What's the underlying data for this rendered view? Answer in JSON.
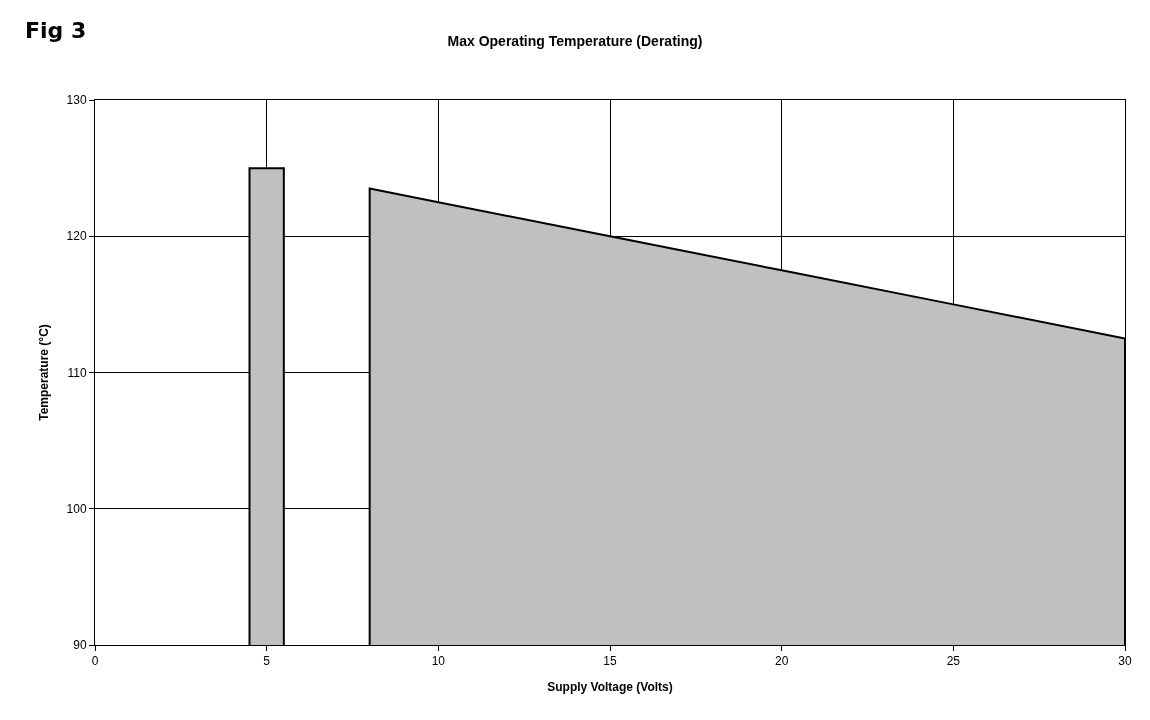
{
  "chart_data": {
    "type": "area",
    "title": "Max Operating Temperature (Derating)",
    "xlabel": "Supply Voltage (Volts)",
    "ylabel": "Temperature (°C)",
    "annotations": [
      "Fig 3"
    ],
    "series": [
      {
        "x": [
          4.5,
          5.5
        ],
        "values": [
          125,
          125
        ],
        "color": "#c0c0c0"
      },
      {
        "x": [
          8,
          10,
          15,
          20,
          25,
          30
        ],
        "values": [
          123.5,
          122.5,
          120,
          117.5,
          115,
          112.5
        ],
        "color": "#c0c0c0"
      }
    ],
    "xlim": [
      0,
      30
    ],
    "xticks": [
      0,
      5,
      10,
      15,
      20,
      25,
      30
    ],
    "ylim": [
      90,
      130
    ],
    "yticks": [
      90,
      100,
      110,
      120,
      130
    ],
    "grid": true
  }
}
